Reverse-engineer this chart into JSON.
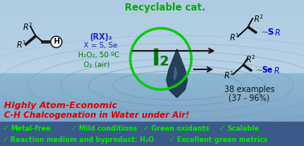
{
  "bg_color": "#a8c8e0",
  "bg_color2": "#c0d8ec",
  "title": "Recyclable cat.",
  "title_color": "#00aa00",
  "catalyst": "I₂",
  "catalyst_color": "#007700",
  "circle_color": "#00cc00",
  "reagents_line1": "(RX)₂",
  "reagents_line2": "X = S, Se",
  "reagents_line3": "H₂O₂, 50 ºC",
  "reagents_line4": "O₂ (air)",
  "reagents_color_1": "#2222cc",
  "reagents_color_2": "#2222cc",
  "reagents_color_3": "#007700",
  "reagents_color_4": "#007700",
  "headline1": "Highly Atom-Economic",
  "headline2": "C-H Chalcogenation in Water under Air!",
  "headline_color": "#dd0000",
  "examples_text": "38 examples",
  "yield_text": "(37 - 96%)",
  "examples_color": "#111111",
  "footer_bg": "#3a5a8a",
  "check_color": "#00dd00",
  "footer_text_color": "#00ee00",
  "water_dark": "#1a3050",
  "ripple_color": "#7090b0",
  "arrow_color": "#111111",
  "S_color": "#0000dd",
  "Se_color": "#0000dd",
  "R_color": "#0000dd"
}
